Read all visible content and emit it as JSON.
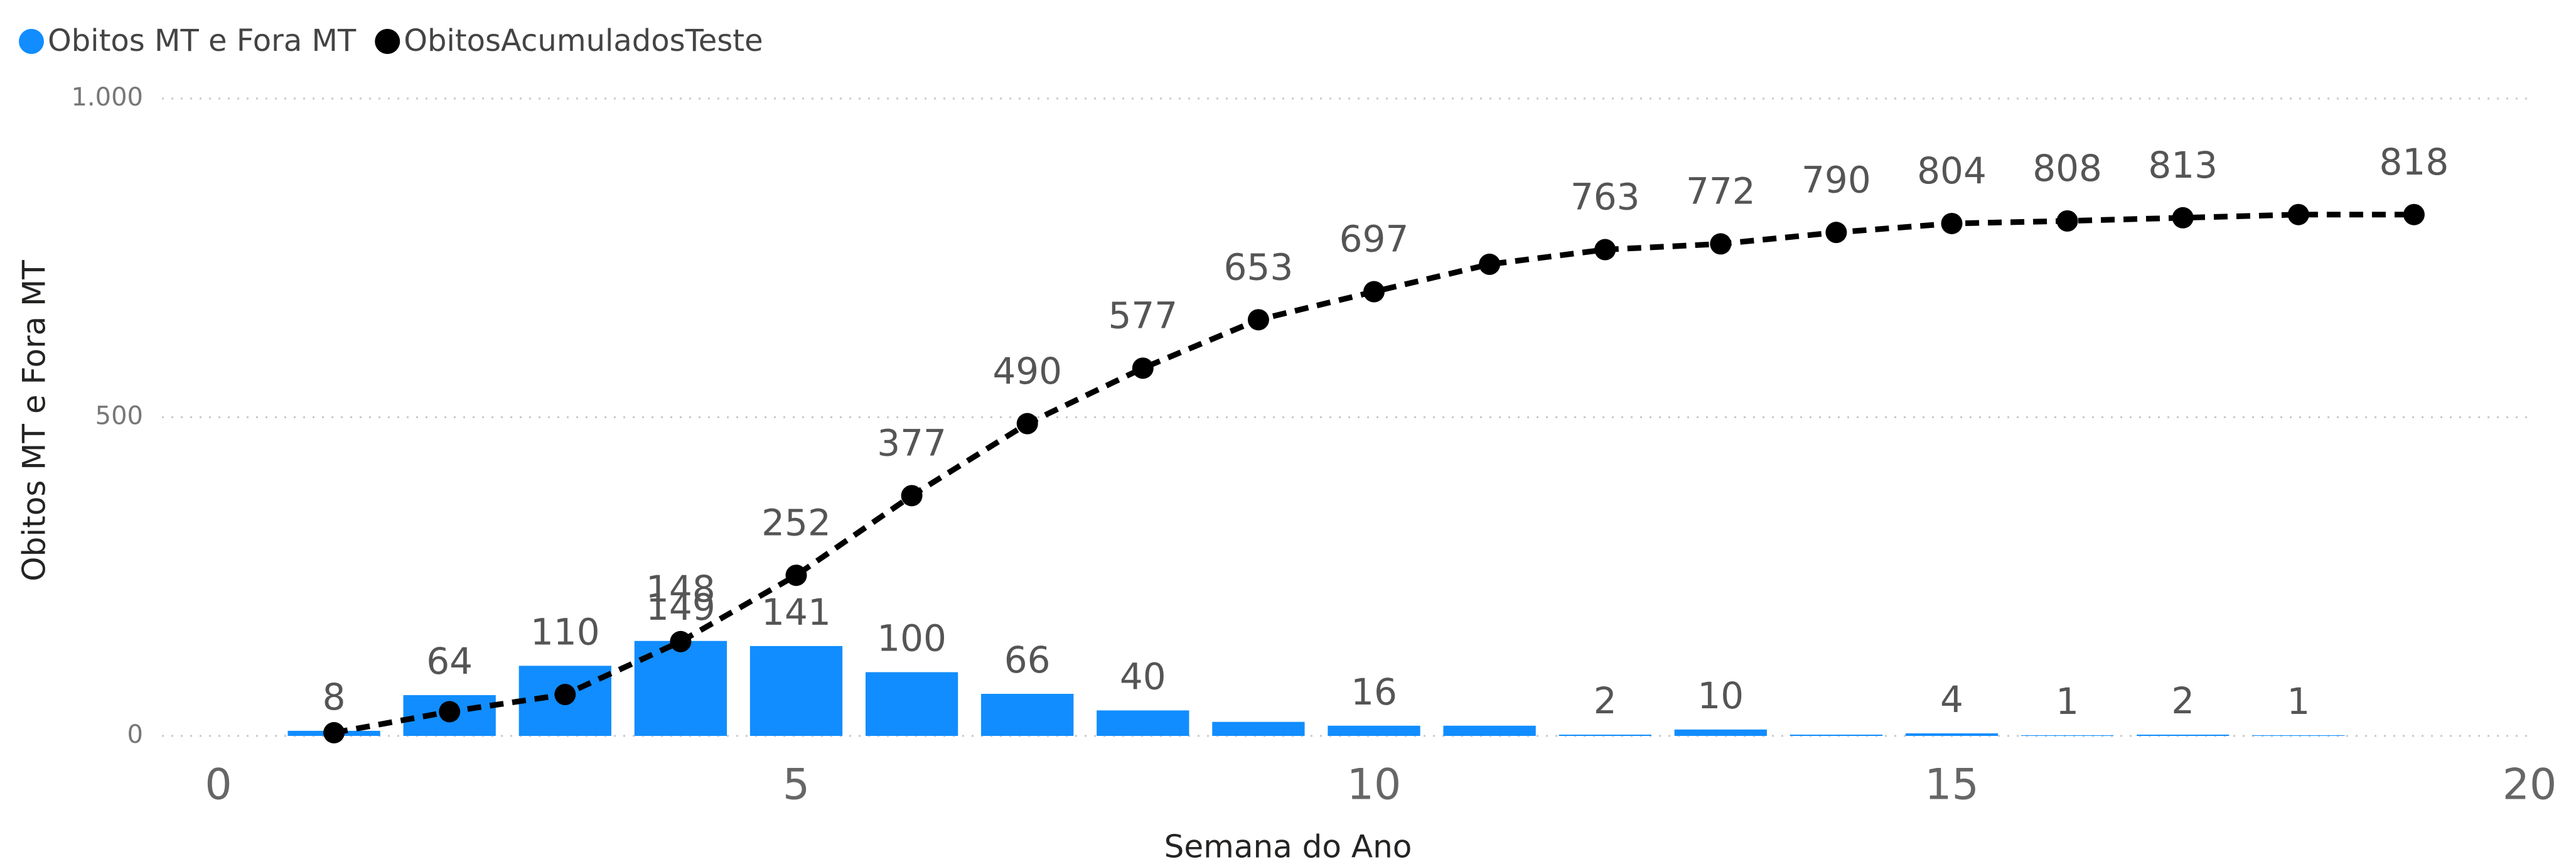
{
  "chart_data": {
    "type": "bar_line",
    "x_label": "Semana do Ano",
    "y_label": "Obitos MT e Fora MT",
    "xlim": [
      0,
      20
    ],
    "xticks": [
      0,
      5,
      10,
      15,
      20
    ],
    "ylim": [
      0,
      1000
    ],
    "yticks": [
      0,
      500,
      {
        "value": 1000,
        "label": "1.000"
      }
    ],
    "grid": true,
    "legend": "top-left",
    "series": [
      {
        "name": "Obitos MT e Fora MT",
        "type": "bar",
        "color": "#118dff",
        "x": [
          1,
          2,
          3,
          4,
          5,
          6,
          7,
          8,
          9,
          10,
          11,
          12,
          13,
          14,
          15,
          16,
          17,
          18
        ],
        "values": [
          8,
          64,
          110,
          149,
          141,
          100,
          66,
          40,
          22,
          16,
          16,
          2,
          10,
          2,
          4,
          1,
          2,
          1
        ],
        "value_labels": [
          "8",
          "64",
          "110",
          "149",
          "141",
          "100",
          "66",
          "40",
          null,
          "16",
          null,
          "2",
          "10",
          null,
          "4",
          "1",
          "2",
          "1"
        ]
      },
      {
        "name": "ObitosAcumuladosTeste",
        "type": "line",
        "color": "#000000",
        "x": [
          1,
          2,
          3,
          4,
          5,
          6,
          7,
          8,
          9,
          10,
          11,
          12,
          13,
          14,
          15,
          16,
          17,
          18,
          19
        ],
        "values": [
          5,
          38,
          65,
          148,
          252,
          377,
          490,
          577,
          653,
          697,
          740,
          763,
          772,
          790,
          804,
          808,
          813,
          818,
          818
        ],
        "value_labels": [
          null,
          null,
          null,
          "148",
          "252",
          "377",
          "490",
          "577",
          "653",
          "697",
          null,
          "763",
          "772",
          "790",
          "804",
          "808",
          "813",
          null,
          "818"
        ]
      }
    ]
  }
}
